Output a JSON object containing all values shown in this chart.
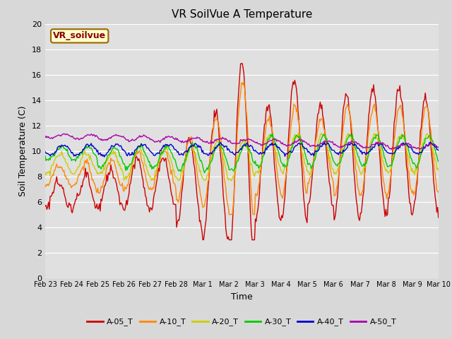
{
  "title": "VR SoilVue A Temperature",
  "xlabel": "Time",
  "ylabel": "Soil Temperature (C)",
  "ylim": [
    0,
    20
  ],
  "yticks": [
    0,
    2,
    4,
    6,
    8,
    10,
    12,
    14,
    16,
    18,
    20
  ],
  "annotation": "VR_soilvue",
  "legend_colors": [
    "#cc0000",
    "#ff8800",
    "#cccc00",
    "#00cc00",
    "#0000cc",
    "#aa00aa"
  ],
  "legend_labels": [
    "A-05_T",
    "A-10_T",
    "A-20_T",
    "A-30_T",
    "A-40_T",
    "A-50_T"
  ],
  "xtick_labels": [
    "Feb 23",
    "Feb 24",
    "Feb 25",
    "Feb 26",
    "Feb 27",
    "Feb 28",
    "Mar 1",
    "Mar 2",
    "Mar 3",
    "Mar 4",
    "Mar 5",
    "Mar 6",
    "Mar 7",
    "Mar 8",
    "Mar 9",
    "Mar 10"
  ]
}
